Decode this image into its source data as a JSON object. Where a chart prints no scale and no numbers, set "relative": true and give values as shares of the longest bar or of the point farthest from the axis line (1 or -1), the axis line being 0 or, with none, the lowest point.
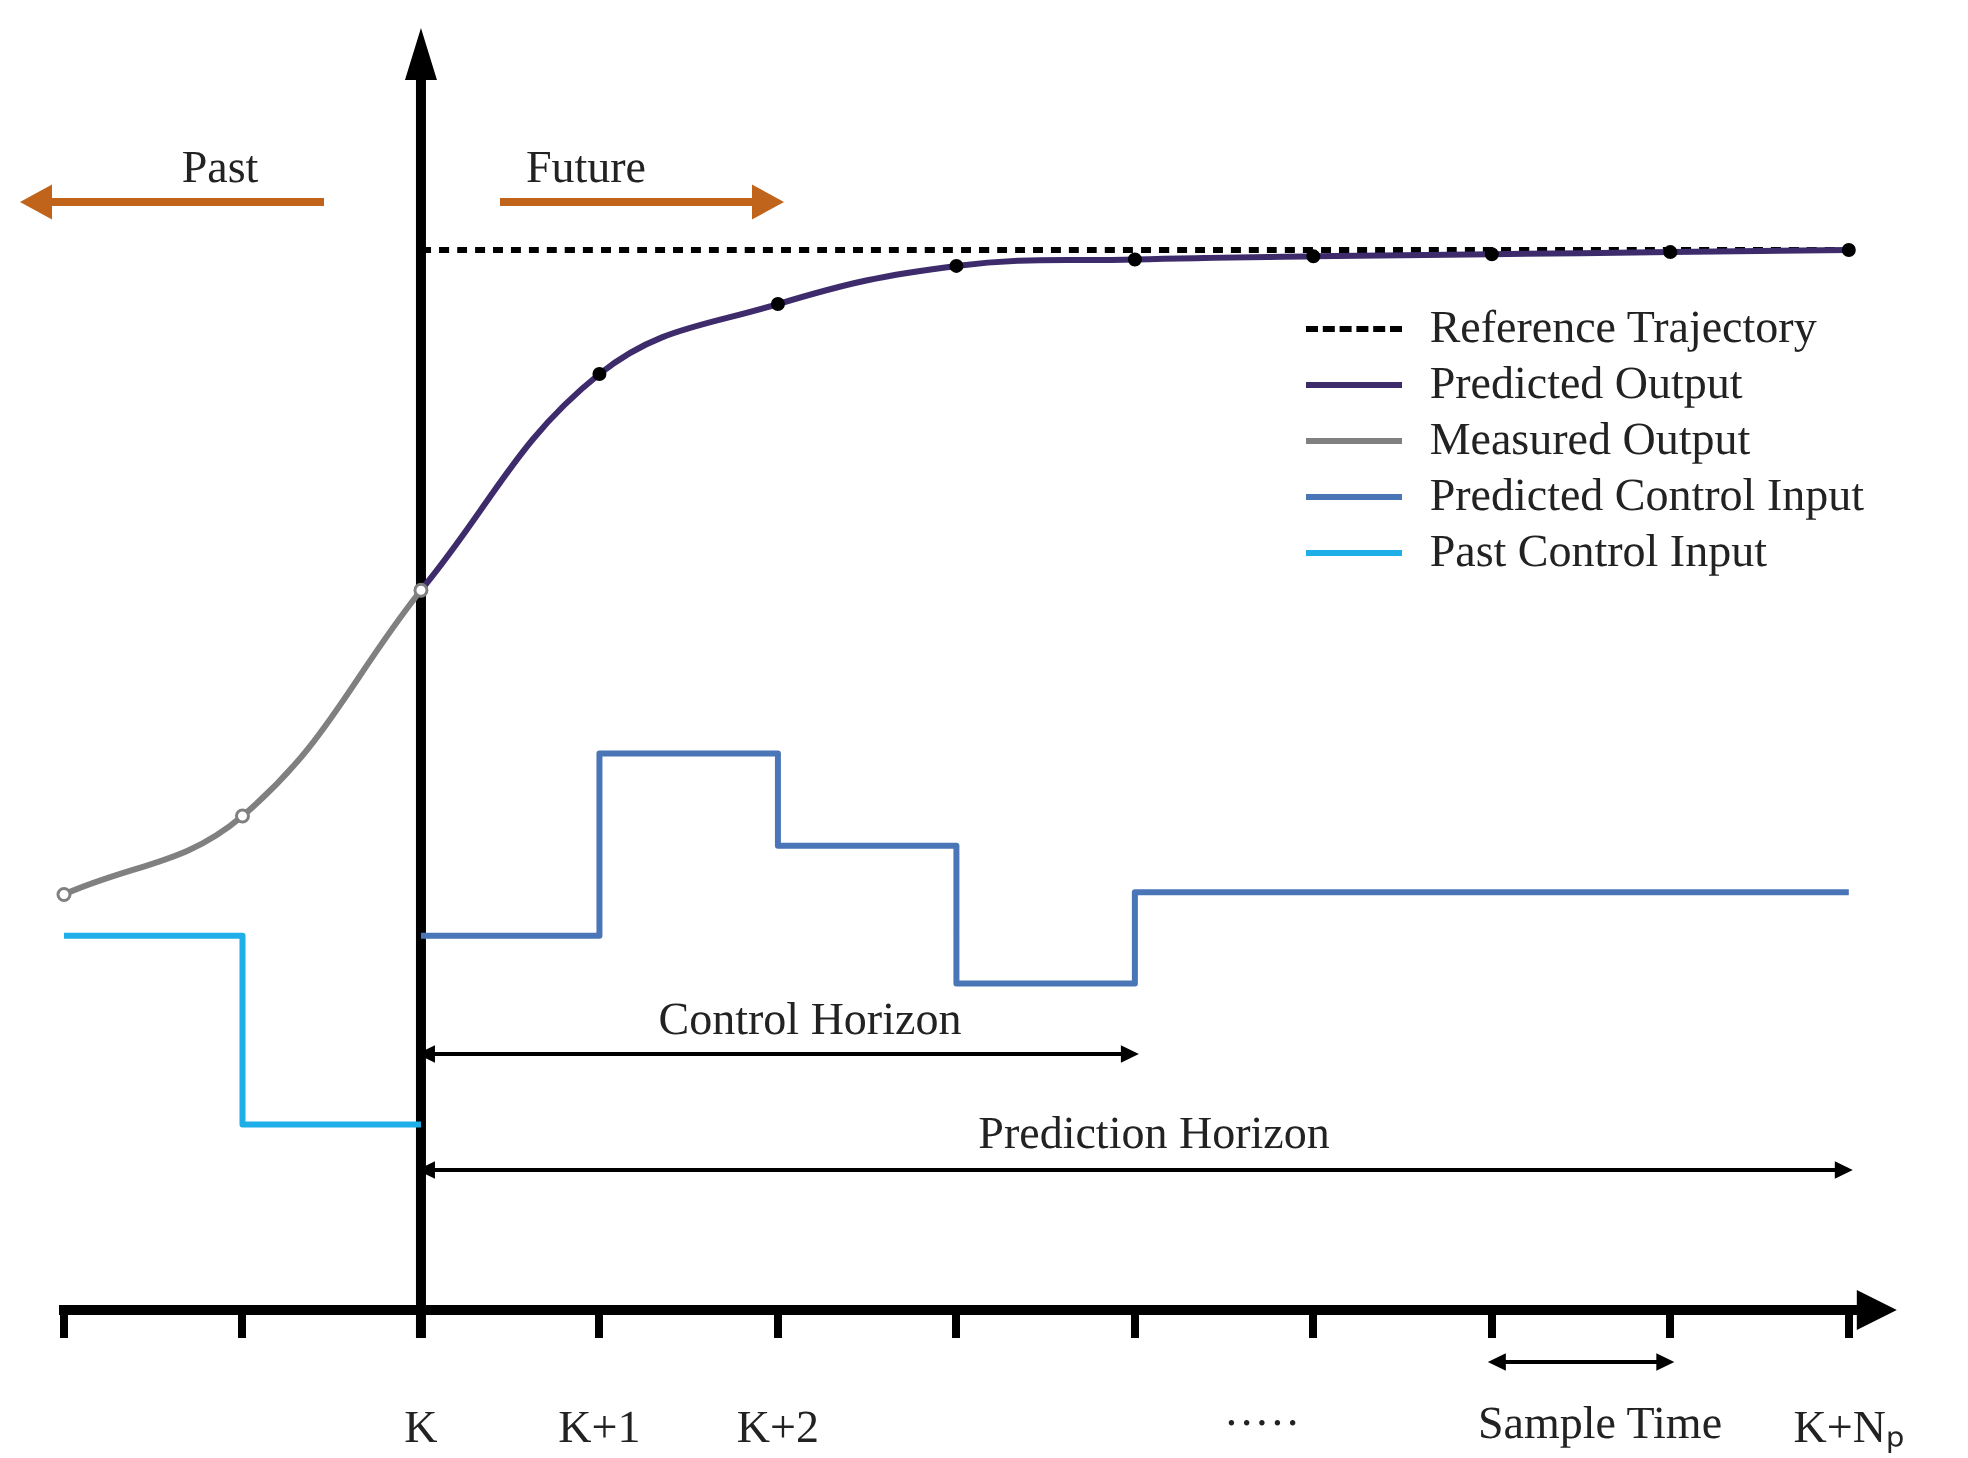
{
  "chart_data": {
    "type": "line",
    "relative": true,
    "categories": [
      null,
      null,
      "K",
      "K+1",
      "K+2",
      null,
      null,
      null,
      null,
      null,
      "K+Nₚ"
    ],
    "series": [
      {
        "name": "Reference Trajectory",
        "color": "#000000",
        "line_style": "dashed",
        "marker": "none",
        "values": [
          null,
          null,
          1,
          1,
          1,
          1,
          1,
          1,
          1,
          1,
          1
        ]
      },
      {
        "name": "Predicted Output",
        "color": "#3d2b6b",
        "marker": "circle",
        "values": [
          null,
          null,
          0.679,
          0.883,
          0.949,
          0.985,
          0.991,
          0.994,
          0.996,
          0.998,
          1
        ]
      },
      {
        "name": "Measured Output",
        "color": "#808080",
        "marker": "circle",
        "values": [
          0.392,
          0.466,
          0.679,
          null,
          null,
          null,
          null,
          null,
          null,
          null,
          null
        ]
      },
      {
        "name": "Predicted Control Input",
        "type": "step",
        "color": "#4a76b8",
        "marker": "none",
        "values": [
          null,
          null,
          0.353,
          0.525,
          0.438,
          0.308,
          0.394,
          0.394,
          0.394,
          0.394,
          0.394
        ]
      },
      {
        "name": "Past Control Input",
        "type": "step",
        "color": "#1eaee8",
        "marker": "none",
        "values": [
          0.353,
          0.175,
          0.175,
          null,
          null,
          null,
          null,
          null,
          null,
          null,
          null
        ]
      }
    ],
    "annotations": [
      "Past",
      "Future",
      "Control Horizon",
      "Prediction Horizon",
      "·····",
      "Sample Time"
    ],
    "line_style": "solid",
    "legend": "top right",
    "grid": false
  }
}
